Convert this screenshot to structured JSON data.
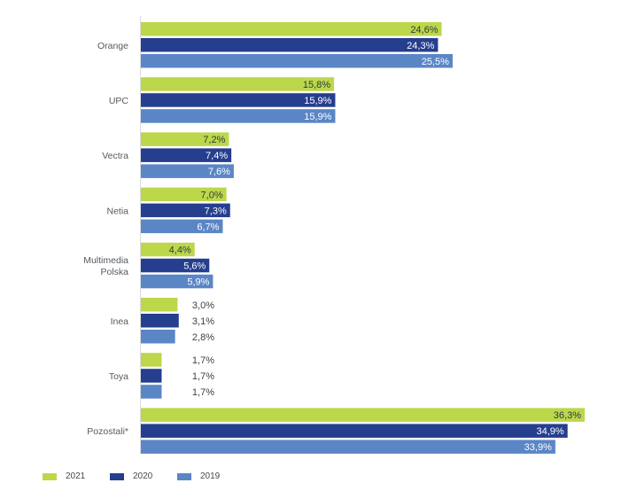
{
  "chart_data": {
    "type": "bar",
    "orientation": "horizontal",
    "categories": [
      "Orange",
      "UPC",
      "Vectra",
      "Netia",
      "Multimedia Polska",
      "Inea",
      "Toya",
      "Pozostali*"
    ],
    "category_lines": [
      [
        "Orange"
      ],
      [
        "UPC"
      ],
      [
        "Vectra"
      ],
      [
        "Netia"
      ],
      [
        "Multimedia",
        "Polska"
      ],
      [
        "Inea"
      ],
      [
        "Toya"
      ],
      [
        "Pozostali*"
      ]
    ],
    "series": [
      {
        "name": "2021",
        "color": "#bcd74a",
        "values": [
          24.6,
          15.8,
          7.2,
          7.0,
          4.4,
          3.0,
          1.7,
          36.3
        ],
        "labels": [
          "24,6%",
          "15,8%",
          "7,2%",
          "7,0%",
          "4,4%",
          "3,0%",
          "1,7%",
          "36,3%"
        ]
      },
      {
        "name": "2020",
        "color": "#263e8e",
        "values": [
          24.3,
          15.9,
          7.4,
          7.3,
          5.6,
          3.1,
          1.7,
          34.9
        ],
        "labels": [
          "24,3%",
          "15,9%",
          "7,4%",
          "7,3%",
          "5,6%",
          "3,1%",
          "1,7%",
          "34,9%"
        ]
      },
      {
        "name": "2019",
        "color": "#5b86c6",
        "values": [
          25.5,
          15.9,
          7.6,
          6.7,
          5.9,
          2.8,
          1.7,
          33.9
        ],
        "labels": [
          "25,5%",
          "15,9%",
          "7,6%",
          "6,7%",
          "5,9%",
          "2,8%",
          "1,7%",
          "33,9%"
        ]
      }
    ],
    "xlim": [
      0,
      36.3
    ],
    "grid": false,
    "legend_position": "bottom-left"
  }
}
